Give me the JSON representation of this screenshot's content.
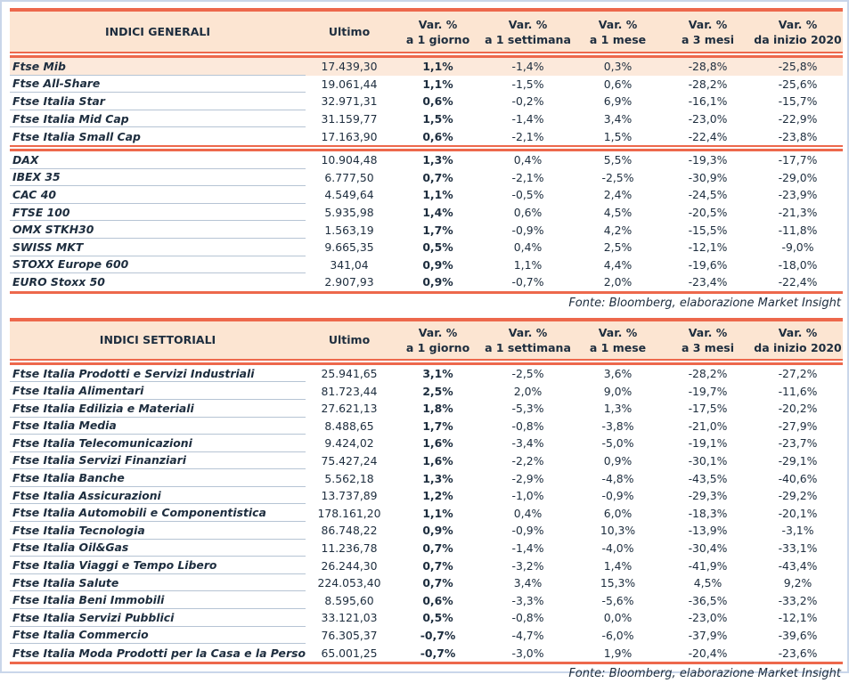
{
  "colors": {
    "accent_red": "#ed684c",
    "header_bg": "#fce5d2",
    "highlight_row_bg": "#fce9db",
    "text": "#1d2d3e",
    "row_separator": "#b6c4d4",
    "frame_border": "#c9d6ea"
  },
  "column_headers": {
    "ultimo": "Ultimo",
    "var_cols": [
      {
        "line1": "Var. %",
        "line2": "a 1 giorno"
      },
      {
        "line1": "Var. %",
        "line2": "a 1 settimana"
      },
      {
        "line1": "Var. %",
        "line2": "a 1 mese"
      },
      {
        "line1": "Var. %",
        "line2": "a 3 mesi"
      },
      {
        "line1": "Var. %",
        "line2": "da inizio 2020"
      }
    ]
  },
  "tables": [
    {
      "title": "INDICI GENERALI",
      "source_note": "Fonte: Bloomberg, elaborazione Market Insight",
      "groups": [
        {
          "rows": [
            {
              "name": "Ftse Mib",
              "highlight": true,
              "values": [
                "17.439,30",
                "1,1%",
                "-1,4%",
                "0,3%",
                "-28,8%",
                "-25,8%"
              ]
            },
            {
              "name": "Ftse All-Share",
              "values": [
                "19.061,44",
                "1,1%",
                "-1,5%",
                "0,6%",
                "-28,2%",
                "-25,6%"
              ]
            },
            {
              "name": "Ftse Italia Star",
              "values": [
                "32.971,31",
                "0,6%",
                "-0,2%",
                "6,9%",
                "-16,1%",
                "-15,7%"
              ]
            },
            {
              "name": "Ftse Italia Mid Cap",
              "values": [
                "31.159,77",
                "1,5%",
                "-1,4%",
                "3,4%",
                "-23,0%",
                "-22,9%"
              ]
            },
            {
              "name": "Ftse Italia Small Cap",
              "values": [
                "17.163,90",
                "0,6%",
                "-2,1%",
                "1,5%",
                "-22,4%",
                "-23,8%"
              ]
            }
          ]
        },
        {
          "rows": [
            {
              "name": "DAX",
              "values": [
                "10.904,48",
                "1,3%",
                "0,4%",
                "5,5%",
                "-19,3%",
                "-17,7%"
              ]
            },
            {
              "name": "IBEX 35",
              "values": [
                "6.777,50",
                "0,7%",
                "-2,1%",
                "-2,5%",
                "-30,9%",
                "-29,0%"
              ]
            },
            {
              "name": "CAC 40",
              "values": [
                "4.549,64",
                "1,1%",
                "-0,5%",
                "2,4%",
                "-24,5%",
                "-23,9%"
              ]
            },
            {
              "name": "FTSE 100",
              "values": [
                "5.935,98",
                "1,4%",
                "0,6%",
                "4,5%",
                "-20,5%",
                "-21,3%"
              ]
            },
            {
              "name": "OMX STKH30",
              "values": [
                "1.563,19",
                "1,7%",
                "-0,9%",
                "4,2%",
                "-15,5%",
                "-11,8%"
              ]
            },
            {
              "name": "SWISS MKT",
              "values": [
                "9.665,35",
                "0,5%",
                "0,4%",
                "2,5%",
                "-12,1%",
                "-9,0%"
              ]
            },
            {
              "name": "STOXX Europe 600",
              "values": [
                "341,04",
                "0,9%",
                "1,1%",
                "4,4%",
                "-19,6%",
                "-18,0%"
              ]
            },
            {
              "name": "EURO Stoxx 50",
              "values": [
                "2.907,93",
                "0,9%",
                "-0,7%",
                "2,0%",
                "-23,4%",
                "-22,4%"
              ]
            }
          ]
        }
      ]
    },
    {
      "title": "INDICI SETTORIALI",
      "source_note": "Fonte: Bloomberg, elaborazione Market Insight",
      "groups": [
        {
          "rows": [
            {
              "name": "Ftse Italia Prodotti e Servizi Industriali",
              "values": [
                "25.941,65",
                "3,1%",
                "-2,5%",
                "3,6%",
                "-28,2%",
                "-27,2%"
              ]
            },
            {
              "name": "Ftse Italia Alimentari",
              "values": [
                "81.723,44",
                "2,5%",
                "2,0%",
                "9,0%",
                "-19,7%",
                "-11,6%"
              ]
            },
            {
              "name": "Ftse Italia Edilizia e Materiali",
              "values": [
                "27.621,13",
                "1,8%",
                "-5,3%",
                "1,3%",
                "-17,5%",
                "-20,2%"
              ]
            },
            {
              "name": "Ftse Italia Media",
              "values": [
                "8.488,65",
                "1,7%",
                "-0,8%",
                "-3,8%",
                "-21,0%",
                "-27,9%"
              ]
            },
            {
              "name": "Ftse Italia Telecomunicazioni",
              "values": [
                "9.424,02",
                "1,6%",
                "-3,4%",
                "-5,0%",
                "-19,1%",
                "-23,7%"
              ]
            },
            {
              "name": "Ftse Italia Servizi Finanziari",
              "values": [
                "75.427,24",
                "1,6%",
                "-2,2%",
                "0,9%",
                "-30,1%",
                "-29,1%"
              ]
            },
            {
              "name": "Ftse Italia Banche",
              "values": [
                "5.562,18",
                "1,3%",
                "-2,9%",
                "-4,8%",
                "-43,5%",
                "-40,6%"
              ]
            },
            {
              "name": "Ftse Italia Assicurazioni",
              "values": [
                "13.737,89",
                "1,2%",
                "-1,0%",
                "-0,9%",
                "-29,3%",
                "-29,2%"
              ]
            },
            {
              "name": "Ftse Italia Automobili e Componentistica",
              "values": [
                "178.161,20",
                "1,1%",
                "0,4%",
                "6,0%",
                "-18,3%",
                "-20,1%"
              ]
            },
            {
              "name": "Ftse Italia Tecnologia",
              "values": [
                "86.748,22",
                "0,9%",
                "-0,9%",
                "10,3%",
                "-13,9%",
                "-3,1%"
              ]
            },
            {
              "name": "Ftse Italia Oil&Gas",
              "values": [
                "11.236,78",
                "0,7%",
                "-1,4%",
                "-4,0%",
                "-30,4%",
                "-33,1%"
              ]
            },
            {
              "name": "Ftse Italia Viaggi e Tempo Libero",
              "values": [
                "26.244,30",
                "0,7%",
                "-3,2%",
                "1,4%",
                "-41,9%",
                "-43,4%"
              ]
            },
            {
              "name": "Ftse Italia Salute",
              "values": [
                "224.053,40",
                "0,7%",
                "3,4%",
                "15,3%",
                "4,5%",
                "9,2%"
              ]
            },
            {
              "name": "Ftse Italia Beni Immobili",
              "values": [
                "8.595,60",
                "0,6%",
                "-3,3%",
                "-5,6%",
                "-36,5%",
                "-33,2%"
              ]
            },
            {
              "name": "Ftse Italia Servizi Pubblici",
              "values": [
                "33.121,03",
                "0,5%",
                "-0,8%",
                "0,0%",
                "-23,0%",
                "-12,1%"
              ]
            },
            {
              "name": "Ftse Italia Commercio",
              "values": [
                "76.305,37",
                "-0,7%",
                "-4,7%",
                "-6,0%",
                "-37,9%",
                "-39,6%"
              ]
            },
            {
              "name": "Ftse Italia Moda Prodotti per la Casa e la Persona",
              "values": [
                "65.001,25",
                "-0,7%",
                "-3,0%",
                "1,9%",
                "-20,4%",
                "-23,6%"
              ]
            }
          ]
        }
      ]
    }
  ]
}
